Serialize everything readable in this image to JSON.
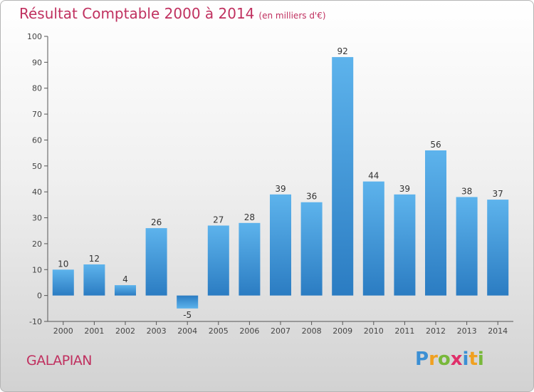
{
  "chart_data": {
    "type": "bar",
    "title": "Résultat Comptable 2000 à 2014",
    "subtitle": "(en milliers d'€)",
    "xlabel": "",
    "ylabel": "",
    "categories": [
      "2000",
      "2001",
      "2002",
      "2003",
      "2004",
      "2005",
      "2006",
      "2007",
      "2008",
      "2009",
      "2010",
      "2011",
      "2012",
      "2013",
      "2014"
    ],
    "values": [
      10,
      12,
      4,
      26,
      -5,
      27,
      28,
      39,
      36,
      92,
      44,
      39,
      56,
      38,
      37
    ],
    "ylim": [
      -10,
      100
    ],
    "yticks": [
      -10,
      0,
      10,
      20,
      30,
      40,
      50,
      60,
      70,
      80,
      90,
      100
    ],
    "grid": false,
    "bar_color": "#3a93d8"
  },
  "location": "GALAPIAN",
  "logo": {
    "text": "Proxiti",
    "letters": [
      "P",
      "r",
      "o",
      "x",
      "i",
      "t",
      "i"
    ],
    "colors": [
      "#3b8fd4",
      "#f0a020",
      "#78b83a",
      "#e02f6a",
      "#3b8fd4",
      "#f0a020",
      "#78b83a"
    ]
  }
}
